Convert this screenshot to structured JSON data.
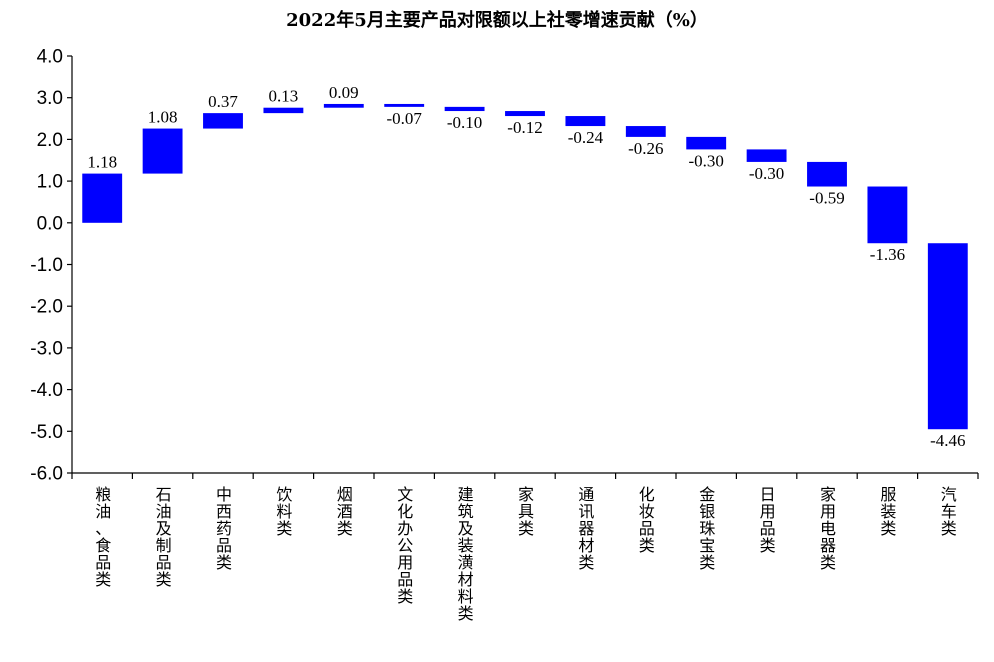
{
  "chart_data": {
    "type": "bar",
    "subtype": "waterfall",
    "title": "2022年5月主要产品对限额以上社零增速贡献（%）",
    "xlabel": "",
    "ylabel": "",
    "ylim": [
      -6.0,
      4.0
    ],
    "yticks": [
      "4.0",
      "3.0",
      "2.0",
      "1.0",
      "0.0",
      "-1.0",
      "-2.0",
      "-3.0",
      "-4.0",
      "-5.0",
      "-6.0"
    ],
    "grid": false,
    "legend": "none",
    "bar_color": "#0000FF",
    "categories": [
      "粮油、食品类",
      "石油及制品类",
      "中西药品类",
      "饮料类",
      "烟酒类",
      "文化办公用品类",
      "建筑及装潢材料类",
      "家具类",
      "通讯器材类",
      "化妆品类",
      "金银珠宝类",
      "日用品类",
      "家用电器类",
      "服装类",
      "汽车类"
    ],
    "values": [
      1.18,
      1.08,
      0.37,
      0.13,
      0.09,
      -0.07,
      -0.1,
      -0.12,
      -0.24,
      -0.26,
      -0.3,
      -0.3,
      -0.59,
      -1.36,
      -4.46
    ],
    "data_labels": [
      "1.18",
      "1.08",
      "0.37",
      "0.13",
      "0.09",
      "-0.07",
      "-0.10",
      "-0.12",
      "-0.24",
      "-0.26",
      "-0.30",
      "-0.30",
      "-0.59",
      "-1.36",
      "-4.46"
    ]
  }
}
